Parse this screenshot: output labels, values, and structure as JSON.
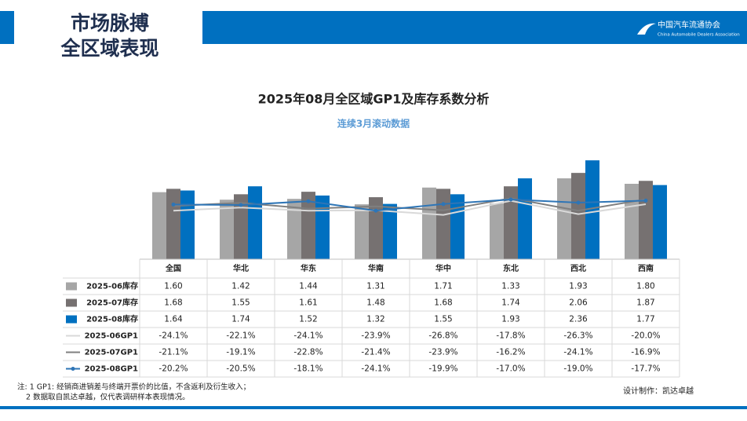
{
  "header": {
    "title_line1": "市场脉搏",
    "title_line2": "全区域表现",
    "logo_cn": "中国汽车流通协会",
    "logo_en": "China Automobile Dealers Association"
  },
  "chart_data": {
    "type": "bar",
    "title": "2025年08月全区域GP1及库存系数分析",
    "subtitle": "连续3月滚动数据",
    "categories": [
      "全国",
      "华北",
      "华东",
      "华南",
      "华中",
      "东北",
      "西北",
      "西南"
    ],
    "ylim": [
      0,
      3
    ],
    "y2lim": [
      -55,
      25
    ],
    "series": [
      {
        "name": "2025-06库存",
        "color": "#a6a6a6",
        "values": [
          1.6,
          1.42,
          1.44,
          1.31,
          1.71,
          1.33,
          1.93,
          1.8
        ],
        "value_labels": [
          "1.60",
          "1.42",
          "1.44",
          "1.31",
          "1.71",
          "1.33",
          "1.93",
          "1.80"
        ]
      },
      {
        "name": "2025-07库存",
        "color": "#767171",
        "values": [
          1.68,
          1.55,
          1.61,
          1.48,
          1.68,
          1.74,
          2.06,
          1.87
        ],
        "value_labels": [
          "1.68",
          "1.55",
          "1.61",
          "1.48",
          "1.68",
          "1.74",
          "2.06",
          "1.87"
        ]
      },
      {
        "name": "2025-08库存",
        "color": "#0070c0",
        "values": [
          1.64,
          1.74,
          1.52,
          1.32,
          1.55,
          1.93,
          2.36,
          1.77
        ],
        "value_labels": [
          "1.64",
          "1.74",
          "1.52",
          "1.32",
          "1.55",
          "1.93",
          "2.36",
          "1.77"
        ]
      },
      {
        "name": "2025-06GP1",
        "type": "line",
        "axis": "y2",
        "color": "#d9d9d9",
        "values": [
          -24.1,
          -22.1,
          -24.1,
          -23.9,
          -26.8,
          -17.8,
          -26.3,
          -20.0
        ],
        "value_labels": [
          "-24.1%",
          "-22.1%",
          "-24.1%",
          "-23.9%",
          "-26.8%",
          "-17.8%",
          "-26.3%",
          "-20.0%"
        ]
      },
      {
        "name": "2025-07GP1",
        "type": "line",
        "axis": "y2",
        "color": "#7f7f7f",
        "values": [
          -21.1,
          -19.1,
          -22.8,
          -21.4,
          -23.9,
          -16.2,
          -24.1,
          -16.9
        ],
        "value_labels": [
          "-21.1%",
          "-19.1%",
          "-22.8%",
          "-21.4%",
          "-23.9%",
          "-16.2%",
          "-24.1%",
          "-16.9%"
        ]
      },
      {
        "name": "2025-08GP1",
        "type": "line",
        "axis": "y2",
        "markers": true,
        "color": "#2e75b6",
        "values": [
          -20.2,
          -20.5,
          -18.1,
          -24.1,
          -19.9,
          -17.0,
          -19.0,
          -17.7
        ],
        "value_labels": [
          "-20.2%",
          "-20.5%",
          "-18.1%",
          "-24.1%",
          "-19.9%",
          "-17.0%",
          "-19.0%",
          "-17.7%"
        ]
      }
    ]
  },
  "notes": [
    "注: 1 GP1: 经销商进销差与终端开票价的比值，不含返利及衍生收入；",
    "2 数据取自凯达卓越，仅代表调研样本表现情况。"
  ],
  "credit": "设计制作：凯达卓越"
}
